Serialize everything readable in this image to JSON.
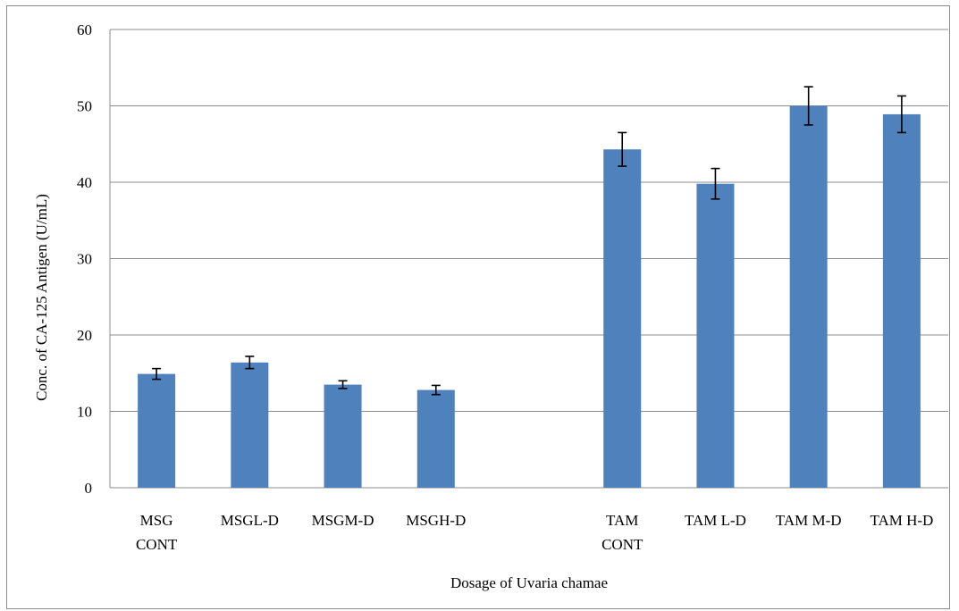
{
  "chart_data": {
    "type": "bar",
    "title": "",
    "xlabel": "Dosage of Uvaria chamae",
    "ylabel": "Conc. of CA-125 Antigen (U/mL)",
    "ylim": [
      0,
      60
    ],
    "yticks": [
      0,
      10,
      20,
      30,
      40,
      50,
      60
    ],
    "grid": true,
    "legend": "none",
    "bar_color": "#4f81bd",
    "categories": [
      [
        "MSG",
        "CONT"
      ],
      [
        "MSGL-D"
      ],
      [
        "MSGM-D"
      ],
      [
        "MSGH-D"
      ],
      [
        ""
      ],
      [
        "TAM",
        "CONT"
      ],
      [
        "TAM L-D"
      ],
      [
        "TAM M-D"
      ],
      [
        "TAM H-D"
      ]
    ],
    "values": [
      14.9,
      16.4,
      13.5,
      12.8,
      null,
      44.3,
      39.8,
      50.0,
      48.9
    ],
    "error": [
      0.7,
      0.8,
      0.5,
      0.6,
      null,
      2.2,
      2.0,
      2.5,
      2.4
    ]
  }
}
